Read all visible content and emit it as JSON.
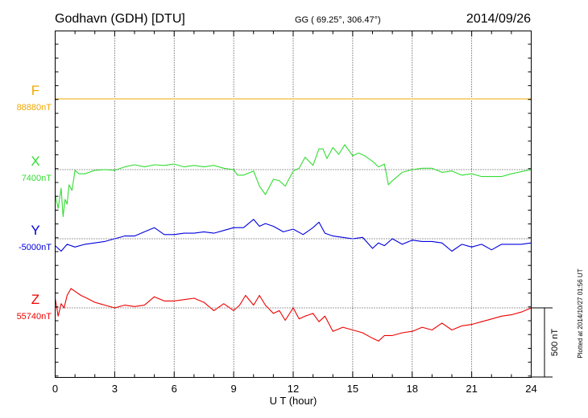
{
  "header": {
    "station": "Godhavn (GDH)  [DTU]",
    "coords": "GG ( 69.25°, 306.47°)",
    "date": "2014/09/26"
  },
  "footer": {
    "plotted": "Plotted at 2014/10/27 01:56 UT"
  },
  "chart_data": {
    "type": "line",
    "xlabel": "U T (hour)",
    "xlim": [
      0,
      24
    ],
    "xticks": [
      "0",
      "3",
      "6",
      "9",
      "12",
      "15",
      "18",
      "21",
      "24"
    ],
    "grid": true,
    "scale_bar": {
      "label": "500 nT",
      "nT": 500
    },
    "colors": {
      "F": "#f0a800",
      "X": "#33dd33",
      "Y": "#0000dd",
      "Z": "#ee0000"
    },
    "series": [
      {
        "name": "F",
        "baseline_label": "88880nT",
        "baseline_nT": 88880,
        "x": [
          0,
          24
        ],
        "y": [
          88880,
          88880
        ]
      },
      {
        "name": "X",
        "baseline_label": "7400nT",
        "baseline_nT": 7400,
        "x": [
          0,
          0.15,
          0.3,
          0.4,
          0.5,
          0.6,
          0.7,
          0.85,
          1.0,
          1.2,
          1.5,
          2,
          2.5,
          3,
          3.5,
          4,
          4.5,
          5,
          5.5,
          6,
          6.5,
          7,
          7.5,
          8,
          8.5,
          9,
          9.2,
          9.5,
          10,
          10.3,
          10.6,
          11,
          11.3,
          11.6,
          12,
          12.3,
          12.6,
          13,
          13.3,
          13.5,
          13.7,
          14,
          14.3,
          14.6,
          15,
          15.3,
          15.6,
          16,
          16.3,
          16.6,
          16.8,
          17,
          17.5,
          18,
          18.5,
          19,
          19.5,
          20,
          20.5,
          21,
          21.5,
          22,
          22.5,
          23,
          23.5,
          24
        ],
        "y": [
          7215,
          7120,
          7265,
          7060,
          7185,
          7150,
          7290,
          7250,
          7395,
          7370,
          7370,
          7395,
          7400,
          7395,
          7420,
          7435,
          7420,
          7435,
          7430,
          7440,
          7420,
          7430,
          7420,
          7430,
          7410,
          7400,
          7360,
          7360,
          7390,
          7280,
          7220,
          7330,
          7320,
          7280,
          7390,
          7410,
          7490,
          7430,
          7550,
          7550,
          7480,
          7560,
          7510,
          7580,
          7500,
          7520,
          7500,
          7460,
          7420,
          7440,
          7290,
          7320,
          7380,
          7400,
          7410,
          7410,
          7380,
          7390,
          7360,
          7370,
          7350,
          7350,
          7350,
          7370,
          7385,
          7400
        ]
      },
      {
        "name": "Y",
        "baseline_label": "-5000nT",
        "baseline_nT": -5000,
        "x": [
          0,
          0.3,
          0.6,
          1,
          1.5,
          2,
          2.5,
          3,
          3.5,
          4,
          4.5,
          5,
          5.5,
          6,
          6.5,
          7,
          7.5,
          8,
          8.5,
          9,
          9.5,
          10,
          10.3,
          10.6,
          11,
          11.5,
          12,
          12.5,
          13,
          13.3,
          13.6,
          14,
          14.5,
          15,
          15.5,
          16,
          16.3,
          16.6,
          17,
          17.5,
          18,
          18.5,
          19,
          19.5,
          20,
          20.5,
          21,
          21.5,
          22,
          22.5,
          23,
          23.5,
          24
        ],
        "y": [
          -5050,
          -5090,
          -5040,
          -5060,
          -5040,
          -5030,
          -5020,
          -5000,
          -4980,
          -4980,
          -4950,
          -4920,
          -4970,
          -4970,
          -4960,
          -4960,
          -4950,
          -4960,
          -4940,
          -4920,
          -4920,
          -4860,
          -4910,
          -4890,
          -4910,
          -4950,
          -4930,
          -4970,
          -4920,
          -4880,
          -4960,
          -4980,
          -4990,
          -5000,
          -4990,
          -5070,
          -5030,
          -5050,
          -5000,
          -5040,
          -5010,
          -5020,
          -5020,
          -5030,
          -5090,
          -5040,
          -5060,
          -5040,
          -5080,
          -5040,
          -5040,
          -5040,
          -5030
        ]
      },
      {
        "name": "Z",
        "baseline_label": "55740nT",
        "baseline_nT": 55740,
        "x": [
          0,
          0.15,
          0.3,
          0.45,
          0.6,
          0.8,
          1,
          1.3,
          1.6,
          2,
          2.5,
          3,
          3.5,
          4,
          4.5,
          5,
          5.5,
          6,
          6.5,
          7,
          7.5,
          8,
          8.5,
          9,
          9.3,
          9.6,
          10,
          10.3,
          10.6,
          11,
          11.3,
          11.6,
          12,
          12.3,
          12.6,
          13,
          13.3,
          13.6,
          14,
          14.5,
          15,
          15.5,
          16,
          16.3,
          16.6,
          17,
          17.5,
          18,
          18.5,
          19,
          19.5,
          20,
          20.5,
          21,
          21.5,
          22,
          22.5,
          23,
          23.5,
          24
        ],
        "y": [
          55810,
          55680,
          55770,
          55740,
          55830,
          55880,
          55860,
          55830,
          55810,
          55780,
          55760,
          55740,
          55760,
          55750,
          55760,
          55820,
          55790,
          55790,
          55800,
          55810,
          55780,
          55720,
          55770,
          55720,
          55760,
          55830,
          55760,
          55830,
          55760,
          55700,
          55720,
          55650,
          55740,
          55660,
          55680,
          55700,
          55640,
          55680,
          55570,
          55600,
          55580,
          55560,
          55520,
          55500,
          55540,
          55540,
          55560,
          55570,
          55600,
          55580,
          55630,
          55580,
          55610,
          55620,
          55640,
          55660,
          55680,
          55690,
          55710,
          55740
        ]
      }
    ]
  }
}
